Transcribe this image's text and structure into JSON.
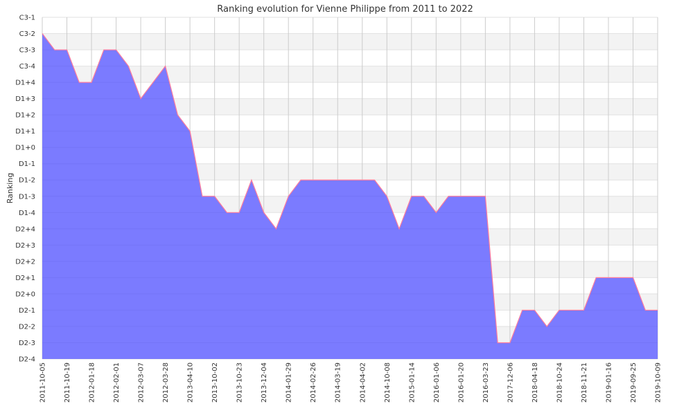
{
  "chart_data": {
    "type": "area",
    "title": "Ranking evolution for Vienne Philippe from 2011 to 2022",
    "xlabel": "",
    "ylabel": "Ranking",
    "y_categories": [
      "C3-1",
      "C3-2",
      "C3-3",
      "C3-4",
      "D1+4",
      "D1+3",
      "D1+2",
      "D1+1",
      "D1+0",
      "D1-1",
      "D1-2",
      "D1-3",
      "D1-4",
      "D2+4",
      "D2+3",
      "D2+2",
      "D2+1",
      "D2+0",
      "D2-1",
      "D2-2",
      "D2-3",
      "D2-4"
    ],
    "x_ticks": [
      {
        "i": 0,
        "label": "2011-10-05"
      },
      {
        "i": 2,
        "label": "2011-10-19"
      },
      {
        "i": 4,
        "label": "2012-01-18"
      },
      {
        "i": 6,
        "label": "2012-02-01"
      },
      {
        "i": 8,
        "label": "2012-03-07"
      },
      {
        "i": 10,
        "label": "2012-03-28"
      },
      {
        "i": 12,
        "label": "2013-04-10"
      },
      {
        "i": 14,
        "label": "2013-10-02"
      },
      {
        "i": 16,
        "label": "2013-10-23"
      },
      {
        "i": 18,
        "label": "2013-12-04"
      },
      {
        "i": 20,
        "label": "2014-01-29"
      },
      {
        "i": 22,
        "label": "2014-02-26"
      },
      {
        "i": 24,
        "label": "2014-03-19"
      },
      {
        "i": 26,
        "label": "2014-04-02"
      },
      {
        "i": 28,
        "label": "2014-10-08"
      },
      {
        "i": 30,
        "label": "2015-01-14"
      },
      {
        "i": 32,
        "label": "2016-01-06"
      },
      {
        "i": 34,
        "label": "2016-01-20"
      },
      {
        "i": 36,
        "label": "2016-03-23"
      },
      {
        "i": 38,
        "label": "2017-12-06"
      },
      {
        "i": 40,
        "label": "2018-04-18"
      },
      {
        "i": 42,
        "label": "2018-10-24"
      },
      {
        "i": 44,
        "label": "2018-11-21"
      },
      {
        "i": 46,
        "label": "2019-01-16"
      },
      {
        "i": 48,
        "label": "2019-09-25"
      },
      {
        "i": 50,
        "label": "2019-10-09"
      }
    ],
    "series": [
      {
        "values": [
          "C3-2",
          "C3-3",
          "C3-3",
          "D1+4",
          "D1+4",
          "C3-3",
          "C3-3",
          "C3-4",
          "D1+3",
          "D1+4",
          "C3-4",
          "D1+2",
          "D1+1",
          "D1-3",
          "D1-3",
          "D1-4",
          "D1-4",
          "D1-2",
          "D1-4",
          "D2+4",
          "D1-3",
          "D1-2",
          "D1-2",
          "D1-2",
          "D1-2",
          "D1-2",
          "D1-2",
          "D1-2",
          "D1-3",
          "D2+4",
          "D1-3",
          "D1-3",
          "D1-4",
          "D1-3",
          "D1-3",
          "D1-3",
          "D1-3",
          "D2-3",
          "D2-3",
          "D2-1",
          "D2-1",
          "D2-2",
          "D2-1",
          "D2-1",
          "D2-1",
          "D2+1",
          "D2+1",
          "D2+1",
          "D2+1",
          "D2-1",
          "D2-1"
        ]
      }
    ],
    "grid": true,
    "colors": {
      "fill": "#7b7bff",
      "line": "#ff7b9c",
      "band": "#f3f3f3",
      "grid": "#cccccc"
    }
  }
}
